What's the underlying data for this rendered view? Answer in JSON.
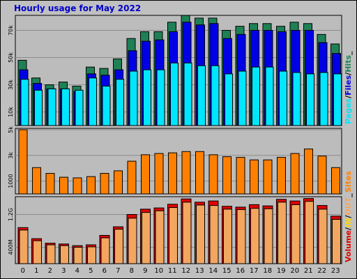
{
  "title": "Hourly usage for May 2022",
  "colors": {
    "background": "#c0c0c0",
    "panel": "#bcbcbc",
    "gridline": "#8c8c8c",
    "hits": "#1f8056",
    "files": "#0000e6",
    "pages": "#00e6ff",
    "visits": "#ff8000",
    "volume": "#e00000",
    "in": "#ffd400",
    "out": "#f2a660"
  },
  "chart_data": [
    {
      "type": "bar",
      "categories": [
        "0",
        "1",
        "2",
        "3",
        "4",
        "5",
        "6",
        "7",
        "8",
        "9",
        "10",
        "11",
        "12",
        "13",
        "14",
        "15",
        "16",
        "17",
        "18",
        "19",
        "20",
        "21",
        "22",
        "23"
      ],
      "ylim": [
        0,
        80000
      ],
      "yticks": [
        "10k",
        "30k",
        "50k",
        "70k"
      ],
      "ytick_values": [
        10000,
        30000,
        50000,
        70000
      ],
      "series": [
        {
          "name": "Hits",
          "values": [
            48000,
            35000,
            30000,
            32000,
            29000,
            43000,
            42000,
            49000,
            64000,
            69000,
            69000,
            76000,
            81000,
            79000,
            79000,
            70000,
            73000,
            75000,
            75000,
            73000,
            76000,
            75000,
            67000,
            60000
          ]
        },
        {
          "name": "Files",
          "values": [
            41000,
            31000,
            27000,
            27000,
            25000,
            38000,
            37000,
            41000,
            55000,
            62000,
            63000,
            69000,
            76000,
            74000,
            75000,
            64000,
            67000,
            70000,
            70000,
            69000,
            70000,
            70000,
            61000,
            53000
          ]
        },
        {
          "name": "Pages",
          "values": [
            34000,
            26000,
            27000,
            27000,
            26000,
            35000,
            29000,
            34000,
            40000,
            41000,
            41000,
            46000,
            46000,
            44000,
            44000,
            38000,
            40000,
            43000,
            43000,
            40000,
            39000,
            38000,
            39000,
            38000
          ]
        }
      ],
      "legend": [
        "Pages",
        "/",
        "Files",
        "/",
        "Hits",
        "_"
      ]
    },
    {
      "type": "bar",
      "categories": [
        "0",
        "1",
        "2",
        "3",
        "4",
        "5",
        "6",
        "7",
        "8",
        "9",
        "10",
        "11",
        "12",
        "13",
        "14",
        "15",
        "16",
        "17",
        "18",
        "19",
        "20",
        "21",
        "22",
        "23"
      ],
      "ylim": [
        0,
        5000
      ],
      "yticks": [
        "1000",
        "3k",
        "5k"
      ],
      "ytick_values": [
        1000,
        3000,
        5000
      ],
      "series": [
        {
          "name": "Sites",
          "values": [
            5000,
            2050,
            1600,
            1300,
            1250,
            1350,
            1600,
            1800,
            2550,
            3050,
            3150,
            3200,
            3300,
            3300,
            3050,
            2900,
            2850,
            2650,
            2650,
            2850,
            3150,
            3500,
            2950,
            2050
          ]
        }
      ],
      "legend": [
        "Sites"
      ]
    },
    {
      "type": "bar",
      "categories": [
        "0",
        "1",
        "2",
        "3",
        "4",
        "5",
        "6",
        "7",
        "8",
        "9",
        "10",
        "11",
        "12",
        "13",
        "14",
        "15",
        "16",
        "17",
        "18",
        "19",
        "20",
        "21",
        "22",
        "23"
      ],
      "ylim": [
        0,
        1600
      ],
      "yticks": [
        "400M",
        "1.2G"
      ],
      "ytick_values": [
        400,
        1200
      ],
      "series": [
        {
          "name": "Volume",
          "values": [
            880,
            610,
            500,
            480,
            440,
            460,
            690,
            900,
            1200,
            1330,
            1360,
            1450,
            1580,
            1500,
            1530,
            1400,
            1380,
            1440,
            1410,
            1570,
            1530,
            1590,
            1420,
            1160
          ]
        },
        {
          "name": "IN",
          "values": [
            0,
            0,
            0,
            0,
            0,
            0,
            0,
            0,
            0,
            0,
            0,
            0,
            0,
            0,
            0,
            0,
            0,
            0,
            0,
            0,
            0,
            0,
            0,
            0
          ]
        },
        {
          "name": "OUT",
          "values": [
            820,
            560,
            460,
            440,
            400,
            410,
            630,
            840,
            1110,
            1250,
            1290,
            1370,
            1500,
            1430,
            1420,
            1330,
            1320,
            1350,
            1340,
            1500,
            1440,
            1520,
            1330,
            1080
          ]
        }
      ],
      "legend": [
        "Volume",
        "/",
        "IN",
        "/",
        "OUT",
        "_"
      ]
    }
  ]
}
